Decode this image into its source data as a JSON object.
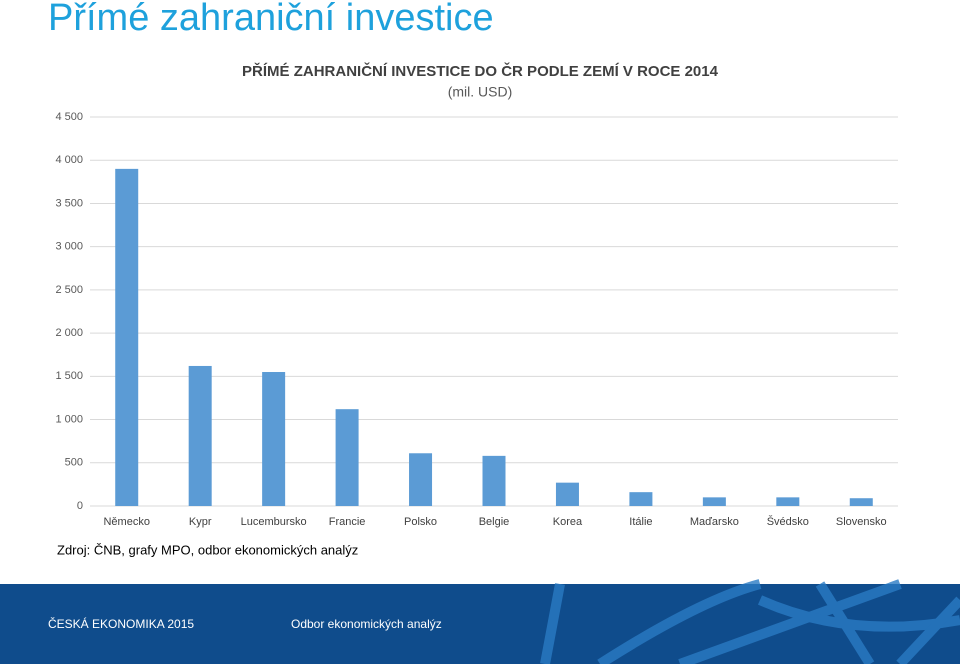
{
  "slide": {
    "heading": "Přímé zahraniční investice",
    "source": "Zdroj: ČNB, grafy MPO, odbor ekonomických analýz",
    "footer_left": "ČESKÁ EKONOMIKA 2015",
    "footer_center": "Odbor ekonomických analýz"
  },
  "chart_data": {
    "type": "bar",
    "title": "PŘÍMÉ ZAHRANIČNÍ INVESTICE DO ČR PODLE ZEMÍ V ROCE 2014",
    "subtitle": "(mil. USD)",
    "categories": [
      "Německo",
      "Kypr",
      "Lucembursko",
      "Francie",
      "Polsko",
      "Belgie",
      "Korea",
      "Itálie",
      "Maďarsko",
      "Švédsko",
      "Slovensko"
    ],
    "values": [
      3900,
      1620,
      1550,
      1120,
      610,
      580,
      270,
      160,
      100,
      100,
      90
    ],
    "color": "#5b9bd5",
    "ylim": [
      0,
      4500
    ],
    "yticks": [
      0,
      500,
      {
        "value": 1000,
        "label": "1 000"
      },
      {
        "value": 1500,
        "label": "1 500"
      },
      {
        "value": 2000,
        "label": "2 000"
      },
      {
        "value": 2500,
        "label": "2 500"
      },
      {
        "value": 3000,
        "label": "3 000"
      },
      {
        "value": 3500,
        "label": "3 500"
      },
      {
        "value": 4000,
        "label": "4 000"
      },
      {
        "value": 4500,
        "label": "4 500"
      }
    ],
    "grid": true
  }
}
